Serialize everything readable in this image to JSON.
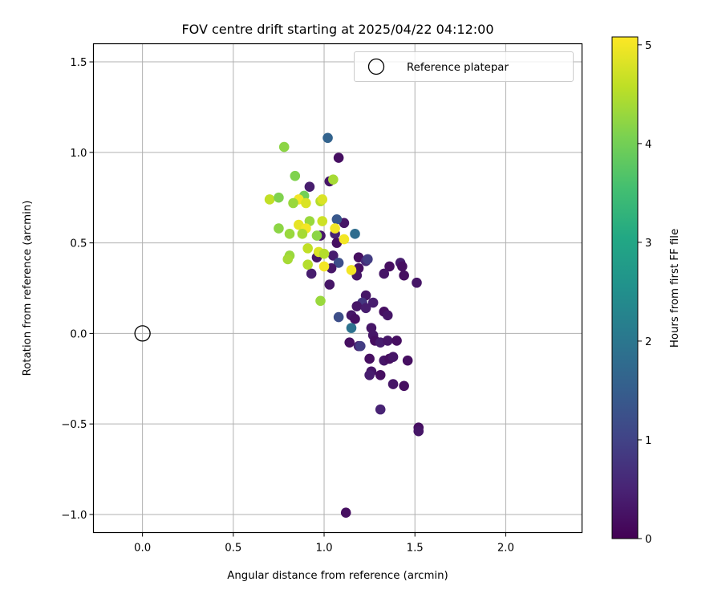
{
  "chart_data": {
    "type": "scatter",
    "title": "FOV centre drift starting at 2025/04/22 04:12:00",
    "xlabel": "Angular distance from reference (arcmin)",
    "ylabel": "Rotation from reference (arcmin)",
    "xlim": [
      -0.27,
      2.42
    ],
    "ylim": [
      -1.1,
      1.6
    ],
    "xticks": [
      0.0,
      0.5,
      1.0,
      1.5,
      2.0
    ],
    "yticks": [
      -1.0,
      -0.5,
      0.0,
      0.5,
      1.0,
      1.5
    ],
    "xtick_labels": [
      "0.0",
      "0.5",
      "1.0",
      "1.5",
      "2.0"
    ],
    "ytick_labels": [
      "−1.0",
      "−0.5",
      "0.0",
      "0.5",
      "1.0",
      "1.5"
    ],
    "grid": true,
    "legend": {
      "position": "top-right",
      "entries": [
        "Reference platepar"
      ]
    },
    "reference_point": {
      "x": 0.0,
      "y": 0.0,
      "label": "Reference platepar"
    },
    "colorbar": {
      "label": "Hours from first FF file",
      "range": [
        0,
        5.08
      ],
      "ticks": [
        0,
        1,
        2,
        3,
        4,
        5
      ],
      "tick_labels": [
        "0",
        "1",
        "2",
        "3",
        "4",
        "5"
      ],
      "colormap": "viridis"
    },
    "points": [
      {
        "x": 1.02,
        "y": 1.08,
        "c": 1.6
      },
      {
        "x": 1.08,
        "y": 0.97,
        "c": 0.2
      },
      {
        "x": 1.03,
        "y": 0.84,
        "c": 0.3
      },
      {
        "x": 0.92,
        "y": 0.81,
        "c": 0.4
      },
      {
        "x": 1.11,
        "y": 0.61,
        "c": 0.3
      },
      {
        "x": 1.07,
        "y": 0.63,
        "c": 1.4
      },
      {
        "x": 1.06,
        "y": 0.55,
        "c": 0.5
      },
      {
        "x": 1.17,
        "y": 0.55,
        "c": 1.8
      },
      {
        "x": 0.98,
        "y": 0.54,
        "c": 0.3
      },
      {
        "x": 1.07,
        "y": 0.5,
        "c": 0.2
      },
      {
        "x": 0.96,
        "y": 0.42,
        "c": 0.3
      },
      {
        "x": 1.05,
        "y": 0.43,
        "c": 0.4
      },
      {
        "x": 1.08,
        "y": 0.39,
        "c": 1.2
      },
      {
        "x": 1.04,
        "y": 0.36,
        "c": 0.3
      },
      {
        "x": 0.93,
        "y": 0.33,
        "c": 0.4
      },
      {
        "x": 1.03,
        "y": 0.27,
        "c": 0.3
      },
      {
        "x": 1.19,
        "y": 0.42,
        "c": 0.2
      },
      {
        "x": 1.23,
        "y": 0.4,
        "c": 0.6
      },
      {
        "x": 1.24,
        "y": 0.41,
        "c": 0.9
      },
      {
        "x": 1.19,
        "y": 0.36,
        "c": 0.2
      },
      {
        "x": 1.18,
        "y": 0.32,
        "c": 0.3
      },
      {
        "x": 1.36,
        "y": 0.37,
        "c": 0.2
      },
      {
        "x": 1.42,
        "y": 0.39,
        "c": 0.4
      },
      {
        "x": 1.43,
        "y": 0.37,
        "c": 0.2
      },
      {
        "x": 1.33,
        "y": 0.33,
        "c": 0.3
      },
      {
        "x": 1.44,
        "y": 0.32,
        "c": 0.2
      },
      {
        "x": 1.51,
        "y": 0.28,
        "c": 0.3
      },
      {
        "x": 1.23,
        "y": 0.21,
        "c": 0.3
      },
      {
        "x": 1.27,
        "y": 0.17,
        "c": 0.4
      },
      {
        "x": 1.21,
        "y": 0.17,
        "c": 0.8
      },
      {
        "x": 1.18,
        "y": 0.15,
        "c": 0.3
      },
      {
        "x": 1.23,
        "y": 0.14,
        "c": 0.4
      },
      {
        "x": 1.15,
        "y": 0.1,
        "c": 0.3
      },
      {
        "x": 1.33,
        "y": 0.12,
        "c": 0.2
      },
      {
        "x": 1.35,
        "y": 0.1,
        "c": 0.3
      },
      {
        "x": 1.17,
        "y": 0.08,
        "c": 0.2
      },
      {
        "x": 1.08,
        "y": 0.09,
        "c": 1.2
      },
      {
        "x": 1.26,
        "y": 0.03,
        "c": 0.3
      },
      {
        "x": 1.15,
        "y": 0.03,
        "c": 1.9
      },
      {
        "x": 1.27,
        "y": -0.01,
        "c": 0.3
      },
      {
        "x": 1.28,
        "y": -0.04,
        "c": 0.2
      },
      {
        "x": 1.31,
        "y": -0.05,
        "c": 0.4
      },
      {
        "x": 1.35,
        "y": -0.04,
        "c": 0.3
      },
      {
        "x": 1.4,
        "y": -0.04,
        "c": 0.2
      },
      {
        "x": 1.14,
        "y": -0.05,
        "c": 0.2
      },
      {
        "x": 1.19,
        "y": -0.07,
        "c": 0.5
      },
      {
        "x": 1.2,
        "y": -0.07,
        "c": 0.9
      },
      {
        "x": 1.25,
        "y": -0.14,
        "c": 0.2
      },
      {
        "x": 1.33,
        "y": -0.15,
        "c": 0.3
      },
      {
        "x": 1.36,
        "y": -0.14,
        "c": 0.2
      },
      {
        "x": 1.38,
        "y": -0.13,
        "c": 0.3
      },
      {
        "x": 1.46,
        "y": -0.15,
        "c": 0.2
      },
      {
        "x": 1.26,
        "y": -0.21,
        "c": 0.3
      },
      {
        "x": 1.25,
        "y": -0.23,
        "c": 0.4
      },
      {
        "x": 1.31,
        "y": -0.23,
        "c": 0.2
      },
      {
        "x": 1.38,
        "y": -0.28,
        "c": 0.3
      },
      {
        "x": 1.44,
        "y": -0.29,
        "c": 0.2
      },
      {
        "x": 1.31,
        "y": -0.42,
        "c": 0.5
      },
      {
        "x": 1.52,
        "y": -0.52,
        "c": 0.2
      },
      {
        "x": 1.52,
        "y": -0.54,
        "c": 0.3
      },
      {
        "x": 1.12,
        "y": -0.99,
        "c": 0.2
      },
      {
        "x": 0.78,
        "y": 1.03,
        "c": 4.2
      },
      {
        "x": 0.84,
        "y": 0.87,
        "c": 4.1
      },
      {
        "x": 1.05,
        "y": 0.85,
        "c": 4.4
      },
      {
        "x": 0.89,
        "y": 0.76,
        "c": 4.0
      },
      {
        "x": 0.7,
        "y": 0.74,
        "c": 4.6
      },
      {
        "x": 0.75,
        "y": 0.75,
        "c": 4.1
      },
      {
        "x": 0.86,
        "y": 0.74,
        "c": 5.0
      },
      {
        "x": 0.83,
        "y": 0.72,
        "c": 4.3
      },
      {
        "x": 0.9,
        "y": 0.72,
        "c": 4.8
      },
      {
        "x": 0.98,
        "y": 0.73,
        "c": 4.5
      },
      {
        "x": 0.99,
        "y": 0.74,
        "c": 4.8
      },
      {
        "x": 0.92,
        "y": 0.62,
        "c": 4.3
      },
      {
        "x": 0.99,
        "y": 0.62,
        "c": 4.7
      },
      {
        "x": 0.86,
        "y": 0.6,
        "c": 4.9
      },
      {
        "x": 0.9,
        "y": 0.58,
        "c": 5.0
      },
      {
        "x": 1.06,
        "y": 0.58,
        "c": 5.0
      },
      {
        "x": 0.75,
        "y": 0.58,
        "c": 4.2
      },
      {
        "x": 0.81,
        "y": 0.55,
        "c": 4.3
      },
      {
        "x": 0.88,
        "y": 0.55,
        "c": 4.4
      },
      {
        "x": 0.96,
        "y": 0.54,
        "c": 4.2
      },
      {
        "x": 1.11,
        "y": 0.52,
        "c": 5.0
      },
      {
        "x": 0.91,
        "y": 0.47,
        "c": 4.6
      },
      {
        "x": 0.97,
        "y": 0.45,
        "c": 4.8
      },
      {
        "x": 1.0,
        "y": 0.44,
        "c": 4.5
      },
      {
        "x": 0.81,
        "y": 0.43,
        "c": 4.3
      },
      {
        "x": 0.8,
        "y": 0.41,
        "c": 4.4
      },
      {
        "x": 0.91,
        "y": 0.38,
        "c": 4.5
      },
      {
        "x": 1.0,
        "y": 0.37,
        "c": 5.0
      },
      {
        "x": 1.15,
        "y": 0.35,
        "c": 5.0
      },
      {
        "x": 0.98,
        "y": 0.18,
        "c": 4.3
      }
    ]
  }
}
